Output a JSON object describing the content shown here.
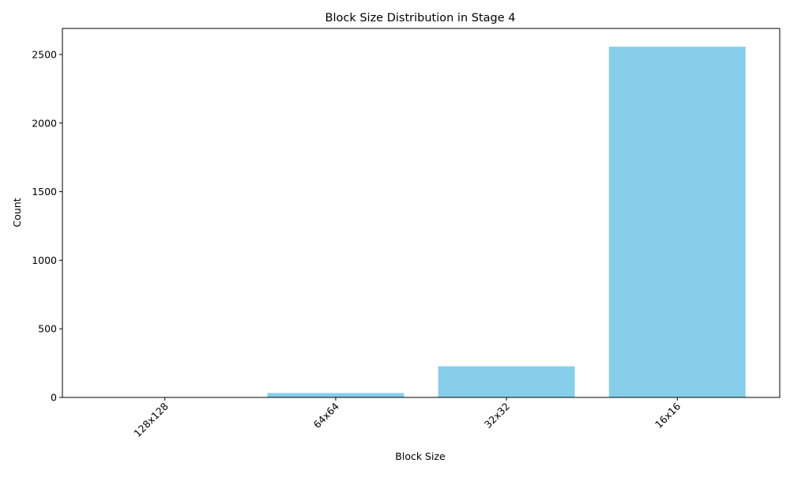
{
  "chart_data": {
    "type": "bar",
    "title": "Block Size Distribution in Stage 4",
    "xlabel": "Block Size",
    "ylabel": "Count",
    "categories": [
      "128x128",
      "64x64",
      "32x32",
      "16x16"
    ],
    "values": [
      1,
      32,
      227,
      2557
    ],
    "ylim": [
      0,
      2690
    ],
    "yticks": [
      0,
      500,
      1000,
      1500,
      2000,
      2500
    ],
    "bar_color": "#87CEEB",
    "grid": false,
    "legend": "none",
    "xtick_rotation_deg": 45
  }
}
